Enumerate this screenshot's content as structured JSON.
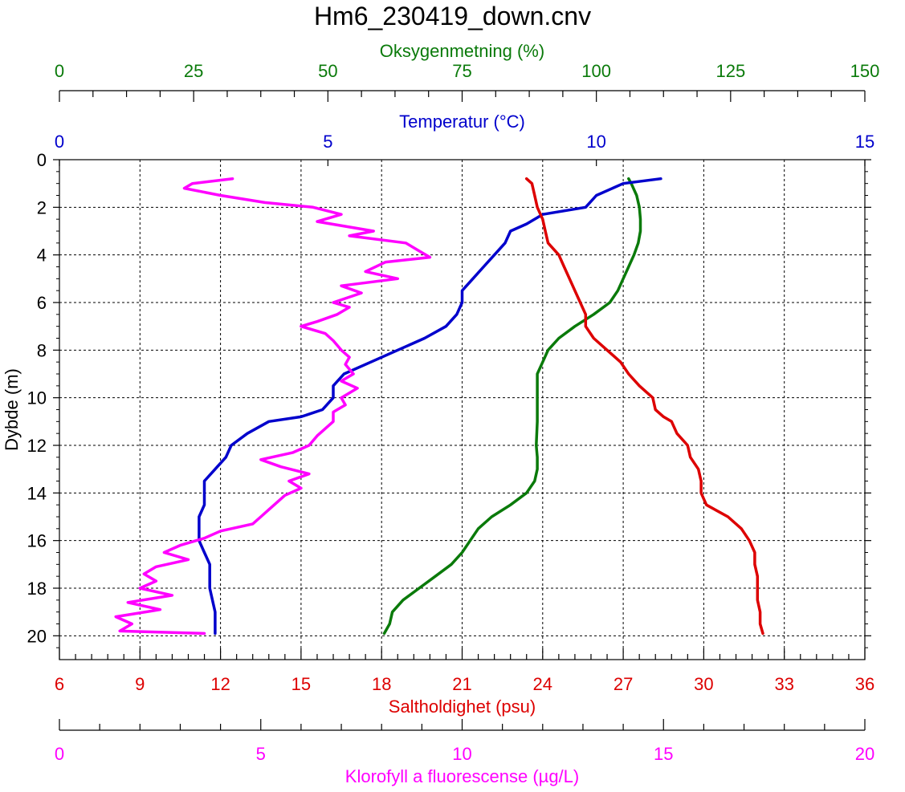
{
  "title": "Hm6_230419_down.cnv",
  "colors": {
    "oxygen": "#0a7a0a",
    "temperature": "#0000cc",
    "salinity": "#dd0000",
    "chlorophyll": "#ff00ff",
    "axis": "#000000",
    "grid": "#000000"
  },
  "chart_data": {
    "type": "line",
    "title": "Hm6_230419_down.cnv",
    "grid": true,
    "y_axis": {
      "label": "Dybde (m)",
      "range": [
        0,
        21
      ],
      "ticks": [
        0,
        2,
        4,
        6,
        8,
        10,
        12,
        14,
        16,
        18,
        20
      ],
      "tick_labels": [
        "0",
        "2",
        "4",
        "6",
        "8",
        "10",
        "12",
        "14",
        "16",
        "18",
        "20"
      ],
      "inverted": true
    },
    "x_axes": [
      {
        "id": "oxygen",
        "label": "Oksygenmetning (%)",
        "range": [
          0,
          150
        ],
        "ticks": [
          0,
          25,
          50,
          75,
          100,
          125,
          150
        ],
        "tick_labels": [
          "0",
          "25",
          "50",
          "75",
          "100",
          "125",
          "150"
        ],
        "minor_step": 6.25,
        "position": "top-outer"
      },
      {
        "id": "temperature",
        "label": "Temperatur (°C)",
        "range": [
          0,
          15
        ],
        "ticks": [
          0,
          5,
          10,
          15
        ],
        "tick_labels": [
          "0",
          "5",
          "10",
          "15"
        ],
        "position": "top-inner"
      },
      {
        "id": "salinity",
        "label": "Saltholdighet (psu)",
        "range": [
          6,
          36
        ],
        "ticks": [
          6,
          9,
          12,
          15,
          18,
          21,
          24,
          27,
          30,
          33,
          36
        ],
        "tick_labels": [
          "6",
          "9",
          "12",
          "15",
          "18",
          "21",
          "24",
          "27",
          "30",
          "33",
          "36"
        ],
        "minor_step": 0.6,
        "position": "bottom-inner"
      },
      {
        "id": "chlorophyll",
        "label": "Klorofyll a fluorescense (µg/L)",
        "range": [
          0,
          20
        ],
        "ticks": [
          0,
          5,
          10,
          15,
          20
        ],
        "tick_labels": [
          "0",
          "5",
          "10",
          "15",
          "20"
        ],
        "minor_step": 1,
        "position": "bottom-outer"
      }
    ],
    "series": [
      {
        "axis": "oxygen",
        "depth": [
          0.8,
          1.0,
          1.5,
          2.0,
          2.5,
          3.0,
          3.5,
          4.0,
          4.5,
          5.0,
          5.5,
          6.0,
          6.5,
          7.0,
          7.5,
          8.0,
          8.5,
          9.0,
          9.5,
          10.0,
          11.0,
          12.0,
          12.5,
          13.0,
          13.5,
          14.0,
          14.5,
          15.0,
          15.5,
          16.0,
          16.5,
          17.0,
          17.5,
          18.0,
          18.5,
          19.0,
          19.5,
          19.9
        ],
        "values": [
          106,
          106.5,
          107.5,
          108,
          108.2,
          108.2,
          107.8,
          107,
          106,
          105,
          104,
          102.5,
          99.5,
          96,
          93,
          91,
          90,
          89,
          89,
          89,
          89,
          88.8,
          89,
          89,
          88.5,
          87,
          84,
          80.5,
          78,
          76.5,
          75,
          73,
          70,
          67,
          64,
          62,
          61.5,
          60.5
        ]
      },
      {
        "axis": "temperature",
        "depth": [
          0.8,
          1.0,
          1.5,
          2.0,
          2.3,
          2.7,
          3.0,
          3.5,
          4.0,
          4.5,
          5.0,
          5.5,
          6.0,
          6.5,
          7.0,
          7.5,
          8.0,
          8.5,
          9.0,
          9.5,
          10.0,
          10.5,
          10.8,
          11.0,
          11.5,
          12.0,
          12.5,
          13.0,
          13.5,
          14.0,
          14.5,
          15.0,
          15.5,
          16.0,
          16.5,
          17.0,
          18.0,
          19.0,
          19.9
        ],
        "values": [
          11.2,
          10.5,
          10.0,
          9.8,
          9.0,
          8.7,
          8.4,
          8.3,
          8.1,
          7.9,
          7.7,
          7.5,
          7.5,
          7.4,
          7.2,
          6.8,
          6.3,
          5.8,
          5.3,
          5.1,
          5.1,
          4.9,
          4.5,
          3.9,
          3.5,
          3.2,
          3.1,
          2.9,
          2.7,
          2.7,
          2.7,
          2.6,
          2.6,
          2.6,
          2.7,
          2.8,
          2.8,
          2.9,
          2.9
        ]
      },
      {
        "axis": "salinity",
        "depth": [
          0.8,
          1.0,
          1.5,
          2.0,
          2.5,
          3.0,
          3.5,
          4.0,
          4.5,
          5.0,
          5.5,
          6.0,
          6.5,
          7.0,
          7.5,
          8.0,
          8.5,
          9.0,
          9.5,
          10.0,
          10.5,
          10.8,
          11.0,
          11.5,
          12.0,
          12.5,
          13.0,
          13.5,
          14.0,
          14.5,
          15.0,
          15.5,
          16.0,
          16.5,
          17.0,
          17.5,
          18.0,
          18.5,
          19.0,
          19.5,
          19.9
        ],
        "values": [
          23.4,
          23.6,
          23.7,
          23.8,
          24.0,
          24.1,
          24.2,
          24.6,
          24.8,
          25.0,
          25.2,
          25.4,
          25.6,
          25.6,
          25.9,
          26.4,
          26.9,
          27.2,
          27.6,
          28.1,
          28.2,
          28.5,
          28.8,
          29.0,
          29.4,
          29.5,
          29.8,
          29.9,
          29.9,
          30.1,
          30.9,
          31.4,
          31.7,
          31.9,
          31.9,
          32.0,
          32.0,
          32.0,
          32.1,
          32.1,
          32.2
        ]
      },
      {
        "axis": "chlorophyll",
        "depth": [
          0.8,
          1.0,
          1.2,
          1.5,
          1.8,
          2.0,
          2.3,
          2.6,
          3.0,
          3.2,
          3.5,
          3.8,
          4.1,
          4.3,
          4.7,
          5.0,
          5.3,
          5.6,
          6.0,
          6.2,
          6.5,
          6.8,
          7.0,
          7.3,
          7.6,
          8.0,
          8.3,
          8.6,
          9.0,
          9.3,
          9.6,
          10.0,
          10.3,
          10.6,
          11.0,
          11.3,
          11.6,
          12.0,
          12.3,
          12.6,
          12.9,
          13.2,
          13.5,
          13.8,
          14.1,
          14.4,
          14.7,
          15.0,
          15.3,
          15.6,
          15.9,
          16.2,
          16.5,
          16.8,
          17.1,
          17.4,
          17.7,
          18.0,
          18.3,
          18.6,
          18.9,
          19.2,
          19.5,
          19.8,
          19.9
        ],
        "values": [
          4.3,
          3.3,
          3.1,
          4.0,
          5.1,
          6.3,
          7.0,
          6.4,
          7.8,
          7.2,
          8.6,
          8.9,
          9.2,
          8.1,
          7.6,
          8.4,
          7.0,
          7.5,
          6.8,
          7.2,
          6.9,
          6.4,
          6.0,
          6.6,
          6.8,
          7.0,
          7.2,
          7.1,
          7.3,
          7.0,
          7.4,
          7.0,
          7.1,
          6.8,
          6.8,
          6.6,
          6.4,
          6.2,
          5.8,
          5.0,
          5.5,
          6.2,
          5.7,
          6.0,
          5.6,
          5.4,
          5.2,
          5.0,
          4.8,
          4.0,
          3.6,
          3.0,
          2.6,
          3.2,
          2.4,
          2.1,
          2.4,
          2.0,
          2.8,
          1.7,
          2.5,
          1.4,
          1.8,
          1.5,
          3.6
        ]
      }
    ]
  }
}
